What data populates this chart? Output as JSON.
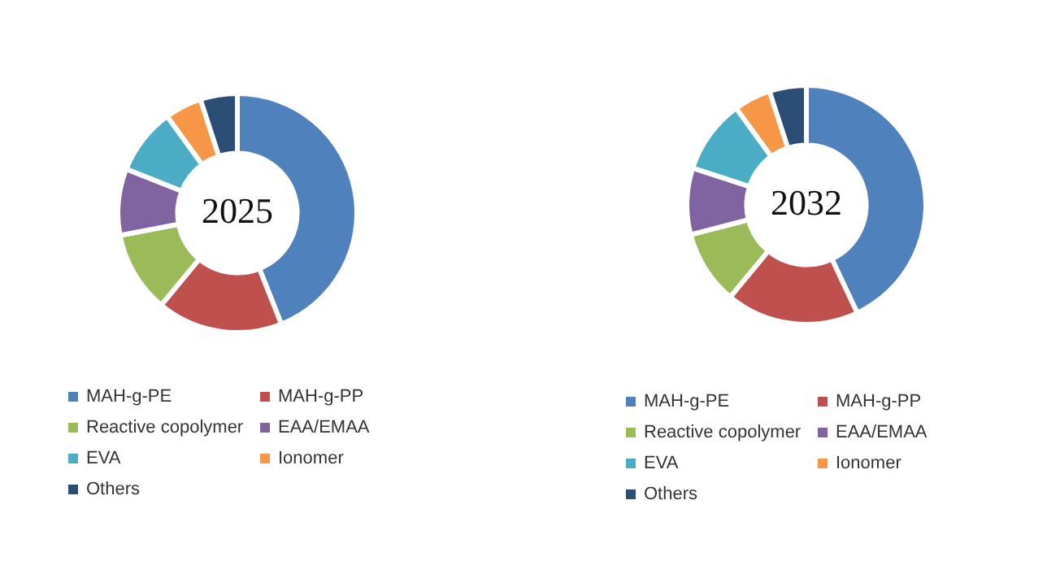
{
  "chart_data": [
    {
      "type": "donut",
      "title": "2025",
      "categories": [
        "MAH-g-PE",
        "MAH-g-PP",
        "Reactive copolymer",
        "EAA/EMAA",
        "EVA",
        "Ionomer",
        "Others"
      ],
      "values": [
        44,
        17,
        11,
        9,
        9,
        5,
        5
      ],
      "colors": [
        "#4f81bd",
        "#c0504d",
        "#9bbb59",
        "#8064a2",
        "#4bacc6",
        "#f79646",
        "#2c4d75"
      ],
      "legend": "bottom"
    },
    {
      "type": "donut",
      "title": "2032",
      "categories": [
        "MAH-g-PE",
        "MAH-g-PP",
        "Reactive copolymer",
        "EAA/EMAA",
        "EVA",
        "Ionomer",
        "Others"
      ],
      "values": [
        43,
        18,
        10,
        9,
        10,
        5,
        5
      ],
      "colors": [
        "#4f81bd",
        "#c0504d",
        "#9bbb59",
        "#8064a2",
        "#4bacc6",
        "#f79646",
        "#2c4d75"
      ],
      "legend": "bottom"
    }
  ]
}
